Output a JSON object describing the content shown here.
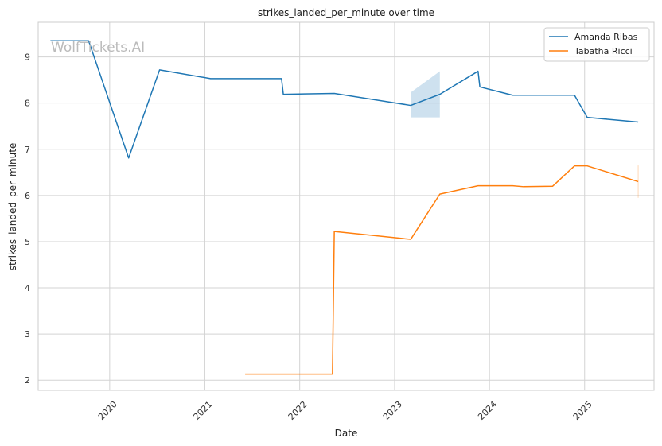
{
  "chart_data": {
    "type": "line",
    "title": "strikes_landed_per_minute over time",
    "xlabel": "Date",
    "ylabel": "strikes_landed_per_minute",
    "watermark": "WolfTickets.AI",
    "ylim": [
      1.78,
      9.75
    ],
    "xlim": [
      "2019-04-01",
      "2025-09-25"
    ],
    "yticks": [
      2,
      3,
      4,
      5,
      6,
      7,
      8,
      9
    ],
    "xticks": [
      "2020",
      "2021",
      "2022",
      "2023",
      "2024",
      "2025"
    ],
    "grid": true,
    "legend_position": "top-right",
    "series": [
      {
        "name": "Amanda Ribas",
        "color": "#1f77b4",
        "points": [
          [
            "2019-05-18",
            9.35
          ],
          [
            "2019-10-12",
            9.35
          ],
          [
            "2020-03-14",
            6.81
          ],
          [
            "2020-07-11",
            8.72
          ],
          [
            "2021-01-23",
            8.53
          ],
          [
            "2021-10-23",
            8.53
          ],
          [
            "2021-10-30",
            8.19
          ],
          [
            "2022-05-14",
            8.21
          ],
          [
            "2023-03-04",
            7.95
          ],
          [
            "2023-06-24",
            8.19
          ],
          [
            "2023-11-18",
            8.69
          ],
          [
            "2023-11-25",
            8.35
          ],
          [
            "2024-03-30",
            8.17
          ],
          [
            "2024-11-23",
            8.17
          ],
          [
            "2025-01-11",
            7.69
          ],
          [
            "2025-07-26",
            7.59
          ]
        ],
        "band": [
          [
            "2023-03-04",
            7.69,
            8.23
          ],
          [
            "2023-06-24",
            7.69,
            8.69
          ]
        ]
      },
      {
        "name": "Tabatha Ricci",
        "color": "#ff7f0e",
        "points": [
          [
            "2021-06-05",
            2.13
          ],
          [
            "2022-05-07",
            2.13
          ],
          [
            "2022-05-14",
            5.22
          ],
          [
            "2023-03-04",
            5.05
          ],
          [
            "2023-06-24",
            6.03
          ],
          [
            "2023-11-18",
            6.21
          ],
          [
            "2024-03-30",
            6.21
          ],
          [
            "2024-05-11",
            6.19
          ],
          [
            "2024-08-31",
            6.2
          ],
          [
            "2024-11-23",
            6.64
          ],
          [
            "2025-01-11",
            6.64
          ],
          [
            "2025-07-26",
            6.3
          ]
        ],
        "band": [
          [
            "2025-07-26",
            5.95,
            6.65
          ]
        ]
      }
    ]
  }
}
